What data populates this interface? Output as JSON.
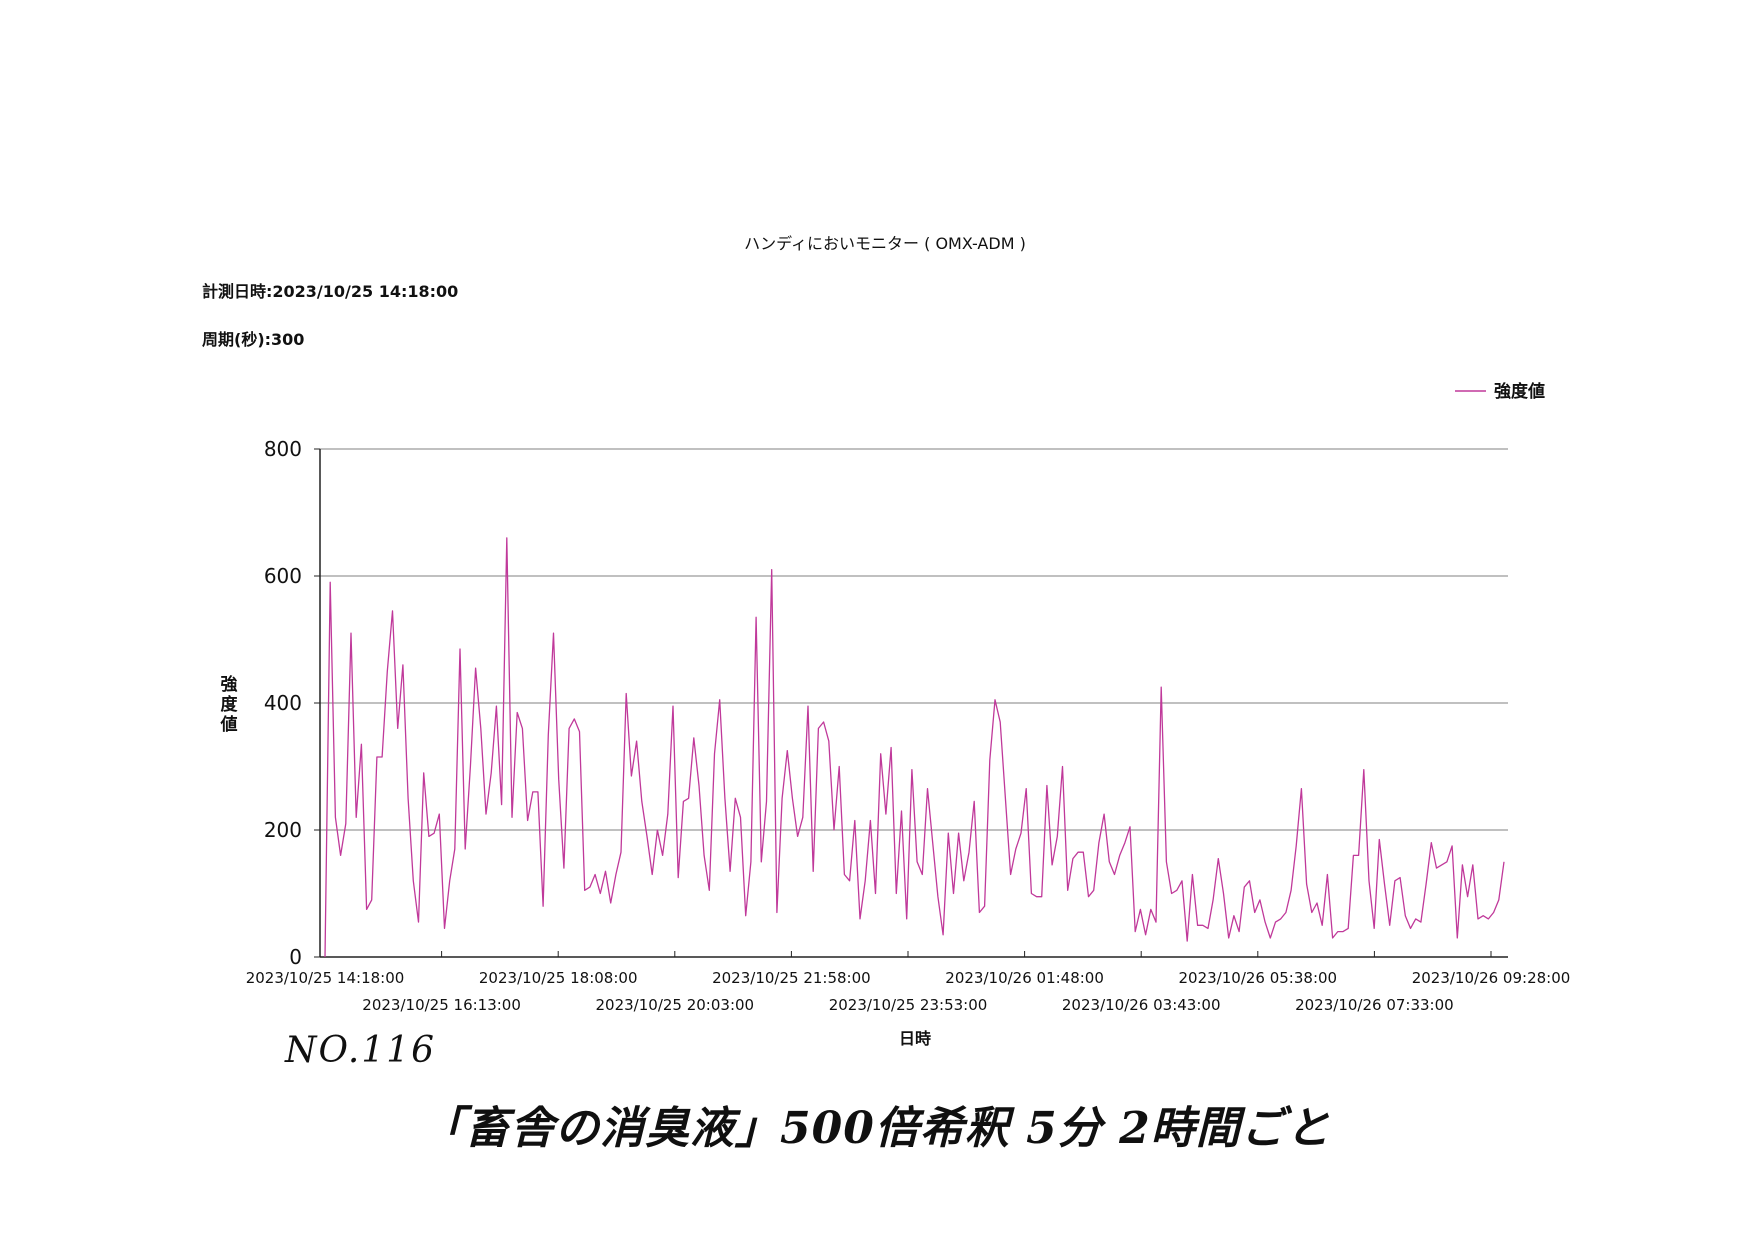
{
  "colors": {
    "series": "#c0399a",
    "grid": "#808080",
    "axis": "#222222"
  },
  "header": {
    "measure_datetime": "計測日時:2023/10/25 14:18:00",
    "period": "周期(秒):300"
  },
  "handwritten": {
    "number": "NO.116",
    "memo": "「畜舎の消臭液」500倍希釈 5分 2時間ごと"
  },
  "chart_data": {
    "type": "line",
    "title": "ハンディにおいモニター ( OMX-ADM )",
    "xlabel": "日時",
    "ylabel": "強度値",
    "ylim": [
      0,
      800
    ],
    "yticks": [
      0,
      200,
      400,
      600,
      800
    ],
    "grid": true,
    "legend": {
      "position": "top-right",
      "entries": [
        "強度値"
      ]
    },
    "x_ticks": [
      "2023/10/25 14:18:00",
      "2023/10/25 16:13:00",
      "2023/10/25 18:08:00",
      "2023/10/25 20:03:00",
      "2023/10/25 21:58:00",
      "2023/10/25 23:53:00",
      "2023/10/26 01:48:00",
      "2023/10/26 03:43:00",
      "2023/10/26 05:38:00",
      "2023/10/26 07:33:00",
      "2023/10/26 09:28:00"
    ],
    "series": [
      {
        "name": "強度値",
        "values": [
          0,
          590,
          220,
          160,
          210,
          510,
          220,
          335,
          75,
          90,
          315,
          315,
          450,
          545,
          360,
          460,
          250,
          120,
          55,
          290,
          190,
          195,
          225,
          45,
          120,
          170,
          485,
          170,
          300,
          455,
          360,
          225,
          290,
          395,
          240,
          660,
          220,
          385,
          360,
          215,
          260,
          260,
          80,
          350,
          510,
          280,
          140,
          360,
          375,
          355,
          105,
          110,
          130,
          100,
          135,
          85,
          130,
          165,
          415,
          285,
          340,
          245,
          190,
          130,
          200,
          160,
          225,
          395,
          125,
          245,
          250,
          345,
          270,
          160,
          105,
          320,
          405,
          250,
          135,
          250,
          220,
          65,
          150,
          535,
          150,
          245,
          610,
          70,
          250,
          325,
          250,
          190,
          220,
          395,
          135,
          360,
          370,
          340,
          200,
          300,
          130,
          120,
          215,
          60,
          120,
          215,
          100,
          320,
          225,
          330,
          100,
          230,
          60,
          295,
          150,
          130,
          265,
          180,
          95,
          35,
          195,
          100,
          195,
          120,
          165,
          245,
          70,
          80,
          310,
          405,
          370,
          250,
          130,
          170,
          195,
          265,
          100,
          95,
          95,
          270,
          145,
          190,
          300,
          105,
          155,
          165,
          165,
          95,
          105,
          180,
          225,
          150,
          130,
          160,
          180,
          205,
          40,
          75,
          35,
          75,
          55,
          425,
          150,
          100,
          105,
          120,
          25,
          130,
          50,
          50,
          45,
          90,
          155,
          100,
          30,
          65,
          40,
          110,
          120,
          70,
          90,
          55,
          30,
          55,
          60,
          70,
          105,
          175,
          265,
          115,
          70,
          85,
          50,
          130,
          30,
          40,
          40,
          45,
          160,
          160,
          295,
          120,
          45,
          185,
          115,
          50,
          120,
          125,
          65,
          45,
          60,
          55,
          115,
          180,
          140,
          145,
          150,
          175,
          30,
          145,
          95,
          145,
          60,
          65,
          60,
          70,
          90,
          150
        ]
      }
    ]
  }
}
